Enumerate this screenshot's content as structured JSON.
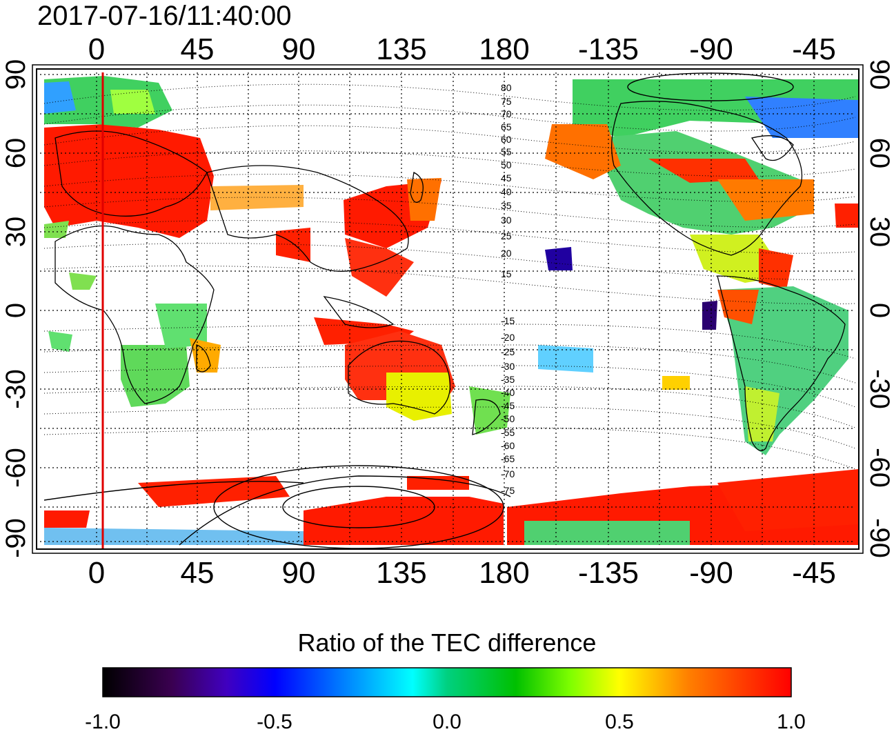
{
  "timestamp": "2017-07-16/11:40:00",
  "map": {
    "lon_ticks_top": [
      "0",
      "45",
      "90",
      "135",
      "180",
      "-135",
      "-90",
      "-45"
    ],
    "lon_ticks_bottom": [
      "0",
      "45",
      "90",
      "135",
      "180",
      "-135",
      "-90",
      "-45"
    ],
    "lat_ticks_left": [
      "90",
      "60",
      "30",
      "0",
      "-30",
      "-60",
      "-90"
    ],
    "lat_ticks_right": [
      "90",
      "60",
      "30",
      "0",
      "-30",
      "-60",
      "-90"
    ],
    "contour_labels_north": [
      "80",
      "75",
      "70",
      "65",
      "60",
      "55",
      "50",
      "45",
      "40",
      "35",
      "30",
      "25",
      "20",
      "15"
    ],
    "contour_labels_south": [
      "-15",
      "-20",
      "-25",
      "-30",
      "-35",
      "-40",
      "-45",
      "-50",
      "-55",
      "-60",
      "-65",
      "-70",
      "-75"
    ],
    "marker_line_color": "#e00000",
    "grid": true
  },
  "colorbar": {
    "title": "Ratio of the TEC difference",
    "ticks": [
      "-1.0",
      "-0.5",
      "0.0",
      "0.5",
      "1.0"
    ],
    "range": [
      -1.0,
      1.0
    ],
    "colors": [
      "#000000",
      "#3a0050",
      "#4000c0",
      "#0000ff",
      "#0080ff",
      "#00ffff",
      "#00d080",
      "#00c000",
      "#80ff00",
      "#ffff00",
      "#ff8000",
      "#ff0000"
    ]
  }
}
